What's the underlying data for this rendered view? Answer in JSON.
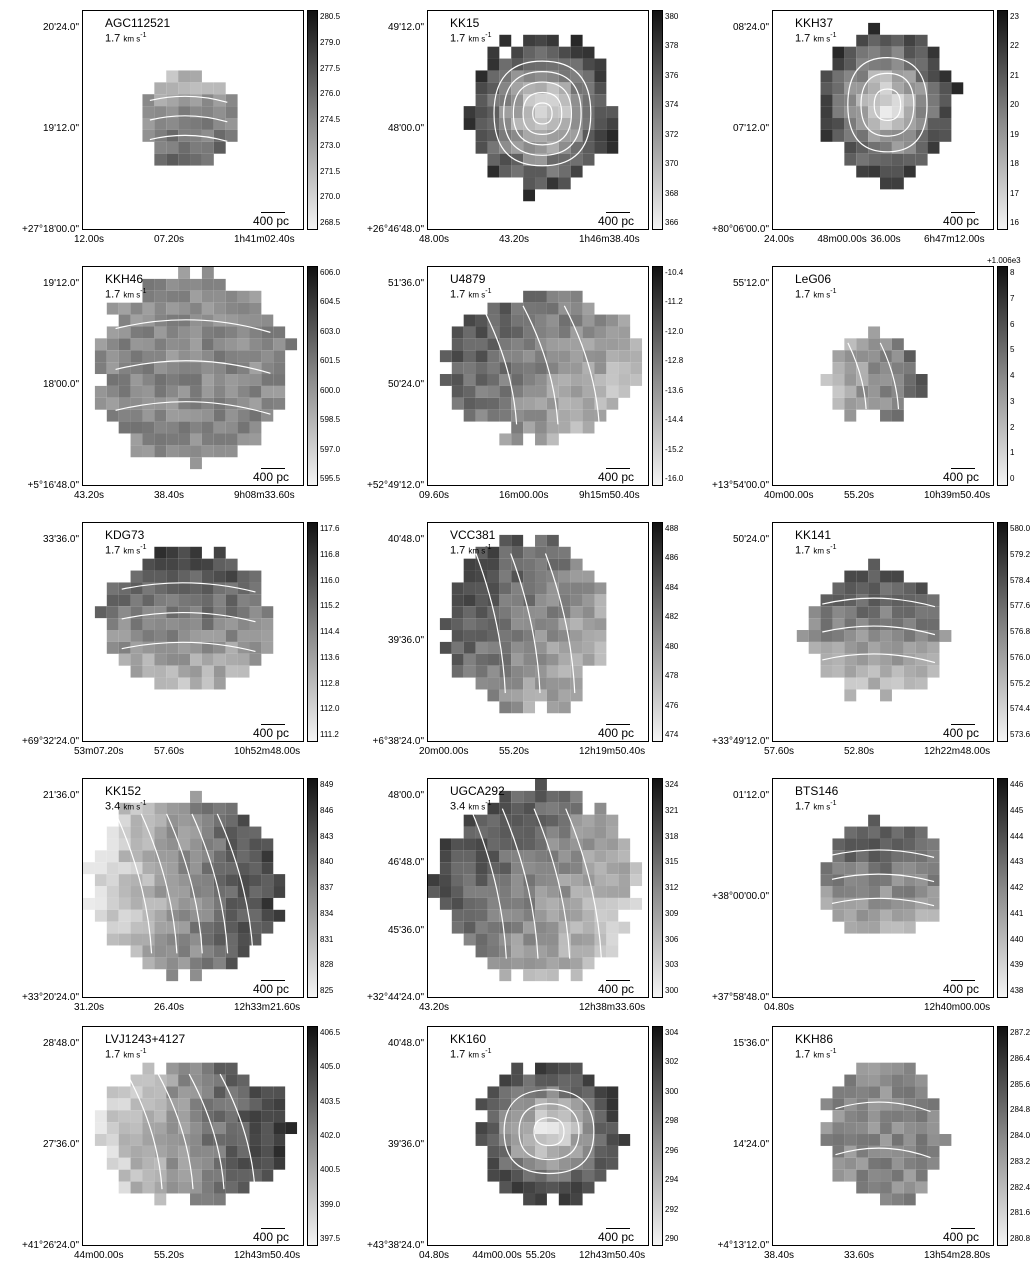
{
  "panels": [
    {
      "name": "AGC112521",
      "unit_value": "1.7",
      "unit": "km s",
      "unit_exp": "-1",
      "scale_label": "400 pc",
      "dec_ticks": [
        "20'24.0\"",
        "19'12.0\"",
        "+27°18'00.0\""
      ],
      "ra_ticks": [
        "12.00s",
        "07.20s",
        "1h41m02.40s"
      ],
      "colorbar": [
        "280.5",
        "279.0",
        "277.5",
        "276.0",
        "274.5",
        "273.0",
        "271.5",
        "270.0",
        "268.5"
      ]
    },
    {
      "name": "KK15",
      "unit_value": "1.7",
      "unit": "km s",
      "unit_exp": "-1",
      "scale_label": "400 pc",
      "dec_ticks": [
        "49'12.0\"",
        "48'00.0\"",
        "+26°46'48.0\""
      ],
      "ra_ticks": [
        "48.00s",
        "43.20s",
        "1h46m38.40s"
      ],
      "colorbar": [
        "380",
        "378",
        "376",
        "374",
        "372",
        "370",
        "368",
        "366"
      ]
    },
    {
      "name": "KKH37",
      "unit_value": "1.7",
      "unit": "km s",
      "unit_exp": "-1",
      "scale_label": "400 pc",
      "dec_ticks": [
        "08'24.0\"",
        "07'12.0\"",
        "+80°06'00.0\""
      ],
      "ra_ticks": [
        "24.00s",
        "48m00.00s",
        "36.00s",
        "6h47m12.00s"
      ],
      "colorbar": [
        "23",
        "22",
        "21",
        "20",
        "19",
        "18",
        "17",
        "16"
      ]
    },
    {
      "name": "KKH46",
      "unit_value": "1.7",
      "unit": "km s",
      "unit_exp": "-1",
      "scale_label": "400 pc",
      "dec_ticks": [
        "19'12.0\"",
        "18'00.0\"",
        "+5°16'48.0\""
      ],
      "ra_ticks": [
        "43.20s",
        "38.40s",
        "9h08m33.60s"
      ],
      "colorbar": [
        "606.0",
        "604.5",
        "603.0",
        "601.5",
        "600.0",
        "598.5",
        "597.0",
        "595.5"
      ]
    },
    {
      "name": "U4879",
      "unit_value": "1.7",
      "unit": "km s",
      "unit_exp": "-1",
      "scale_label": "400 pc",
      "dec_ticks": [
        "51'36.0\"",
        "50'24.0\"",
        "+52°49'12.0\""
      ],
      "ra_ticks": [
        "09.60s",
        "16m00.00s",
        "9h15m50.40s"
      ],
      "colorbar": [
        "-10.4",
        "-11.2",
        "-12.0",
        "-12.8",
        "-13.6",
        "-14.4",
        "-15.2",
        "-16.0"
      ]
    },
    {
      "name": "LeG06",
      "unit_value": "1.7",
      "unit": "km s",
      "unit_exp": "-1",
      "scale_label": "400 pc",
      "dec_ticks": [
        "55'12.0\"",
        "+13°54'00.0\""
      ],
      "ra_ticks": [
        "40m00.00s",
        "55.20s",
        "10h39m50.40s"
      ],
      "colorbar_offset": "+1.006e3",
      "colorbar": [
        "8",
        "7",
        "6",
        "5",
        "4",
        "3",
        "2",
        "1",
        "0"
      ]
    },
    {
      "name": "KDG73",
      "unit_value": "1.7",
      "unit": "km s",
      "unit_exp": "-1",
      "scale_label": "400 pc",
      "dec_ticks": [
        "33'36.0\"",
        "+69°32'24.0\""
      ],
      "ra_ticks": [
        "53m07.20s",
        "57.60s",
        "10h52m48.00s"
      ],
      "colorbar": [
        "117.6",
        "116.8",
        "116.0",
        "115.2",
        "114.4",
        "113.6",
        "112.8",
        "112.0",
        "111.2"
      ]
    },
    {
      "name": "VCC381",
      "unit_value": "1.7",
      "unit": "km s",
      "unit_exp": "-1",
      "scale_label": "400 pc",
      "dec_ticks": [
        "40'48.0\"",
        "39'36.0\"",
        "+6°38'24.0\""
      ],
      "ra_ticks": [
        "20m00.00s",
        "55.20s",
        "12h19m50.40s"
      ],
      "colorbar": [
        "488",
        "486",
        "484",
        "482",
        "480",
        "478",
        "476",
        "474"
      ]
    },
    {
      "name": "KK141",
      "unit_value": "1.7",
      "unit": "km s",
      "unit_exp": "-1",
      "scale_label": "400 pc",
      "dec_ticks": [
        "50'24.0\"",
        "+33°49'12.0\""
      ],
      "ra_ticks": [
        "57.60s",
        "52.80s",
        "12h22m48.00s"
      ],
      "colorbar": [
        "580.0",
        "579.2",
        "578.4",
        "577.6",
        "576.8",
        "576.0",
        "575.2",
        "574.4",
        "573.6"
      ]
    },
    {
      "name": "KK152",
      "unit_value": "3.4",
      "unit": "km s",
      "unit_exp": "-1",
      "scale_label": "400 pc",
      "dec_ticks": [
        "21'36.0\"",
        "+33°20'24.0\""
      ],
      "ra_ticks": [
        "31.20s",
        "26.40s",
        "12h33m21.60s"
      ],
      "colorbar": [
        "849",
        "846",
        "843",
        "840",
        "837",
        "834",
        "831",
        "828",
        "825"
      ]
    },
    {
      "name": "UGCA292",
      "unit_value": "3.4",
      "unit": "km s",
      "unit_exp": "-1",
      "scale_label": "400 pc",
      "dec_ticks": [
        "48'00.0\"",
        "46'48.0\"",
        "45'36.0\"",
        "+32°44'24.0\""
      ],
      "ra_ticks": [
        "43.20s",
        "12h38m33.60s"
      ],
      "colorbar": [
        "324",
        "321",
        "318",
        "315",
        "312",
        "309",
        "306",
        "303",
        "300"
      ]
    },
    {
      "name": "BTS146",
      "unit_value": "1.7",
      "unit": "km s",
      "unit_exp": "-1",
      "scale_label": "400 pc",
      "dec_ticks": [
        "01'12.0\"",
        "+38°00'00.0\"",
        "+37°58'48.0\""
      ],
      "ra_ticks": [
        "04.80s",
        "12h40m00.00s"
      ],
      "colorbar": [
        "446",
        "445",
        "444",
        "443",
        "442",
        "441",
        "440",
        "439",
        "438"
      ]
    },
    {
      "name": "LVJ1243+4127",
      "unit_value": "1.7",
      "unit": "km s",
      "unit_exp": "-1",
      "scale_label": "400 pc",
      "dec_ticks": [
        "28'48.0\"",
        "27'36.0\"",
        "+41°26'24.0\""
      ],
      "ra_ticks": [
        "44m00.00s",
        "55.20s",
        "12h43m50.40s"
      ],
      "colorbar": [
        "406.5",
        "405.0",
        "403.5",
        "402.0",
        "400.5",
        "399.0",
        "397.5"
      ]
    },
    {
      "name": "KK160",
      "unit_value": "1.7",
      "unit": "km s",
      "unit_exp": "-1",
      "scale_label": "400 pc",
      "dec_ticks": [
        "40'48.0\"",
        "39'36.0\"",
        "+43°38'24.0\""
      ],
      "ra_ticks": [
        "04.80s",
        "44m00.00s",
        "55.20s",
        "12h43m50.40s"
      ],
      "colorbar": [
        "304",
        "302",
        "300",
        "298",
        "296",
        "294",
        "292",
        "290"
      ]
    },
    {
      "name": "KKH86",
      "unit_value": "1.7",
      "unit": "km s",
      "unit_exp": "-1",
      "scale_label": "400 pc",
      "dec_ticks": [
        "15'36.0\"",
        "14'24.0\"",
        "+4°13'12.0\""
      ],
      "ra_ticks": [
        "38.40s",
        "33.60s",
        "13h54m28.80s"
      ],
      "colorbar": [
        "287.2",
        "286.4",
        "285.6",
        "284.8",
        "284.0",
        "283.2",
        "282.4",
        "281.6",
        "280.8"
      ]
    }
  ]
}
